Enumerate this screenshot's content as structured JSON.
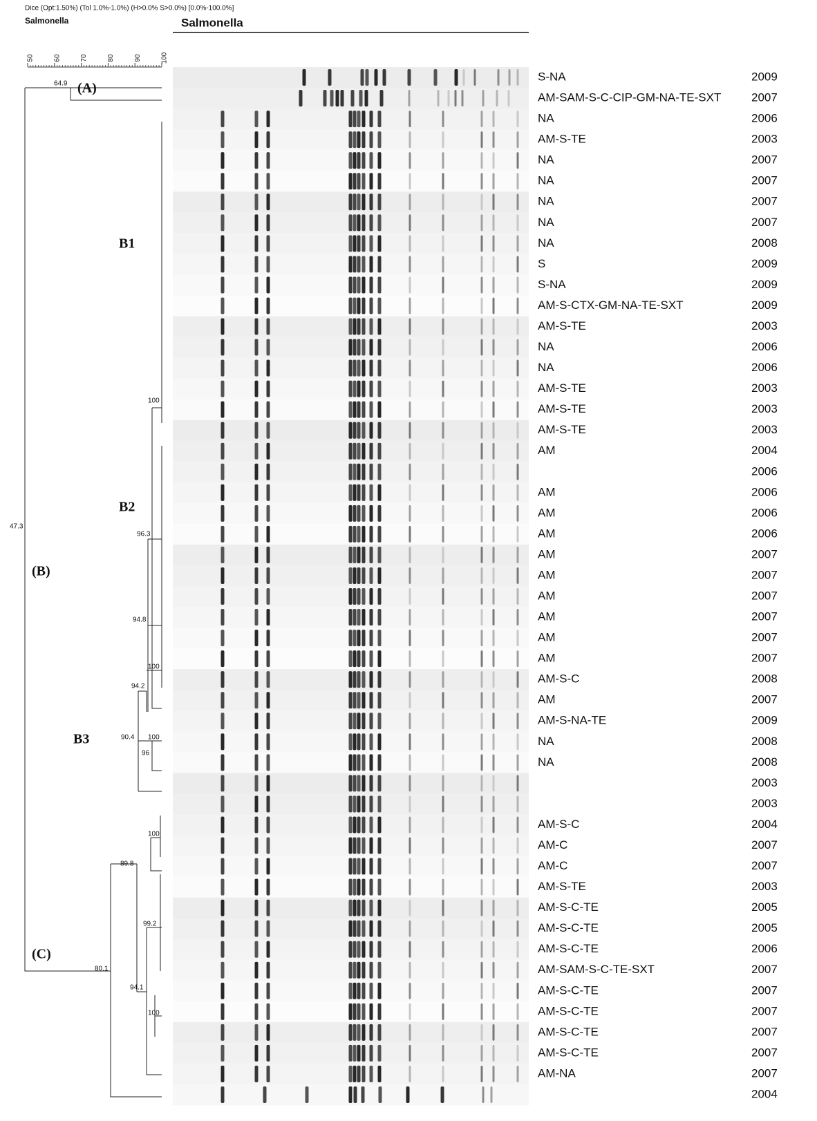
{
  "header": {
    "method": "Dice (Opt:1.50%) (Tol 1.0%-1.0%) (H>0.0% S>0.0%) [0.0%-100.0%]",
    "left_title": "Salmonella",
    "gel_title": "Salmonella"
  },
  "scale": {
    "ticks": [
      50,
      60,
      70,
      80,
      90,
      100
    ]
  },
  "clusters": [
    "(A)",
    "B1",
    "B2",
    "(B)",
    "B3",
    "(C)"
  ],
  "nodes": [
    64.9,
    47.3,
    100,
    96.3,
    94.8,
    100,
    94.2,
    90.4,
    100,
    96,
    100,
    89.8,
    99.2,
    80.1,
    94.1,
    100
  ],
  "rows": [
    {
      "profile": "S-NA",
      "year": 2009
    },
    {
      "profile": "AM-SAM-S-C-CIP-GM-NA-TE-SXT",
      "year": 2007
    },
    {
      "profile": "NA",
      "year": 2006
    },
    {
      "profile": "AM-S-TE",
      "year": 2003
    },
    {
      "profile": "NA",
      "year": 2007
    },
    {
      "profile": "NA",
      "year": 2007
    },
    {
      "profile": "NA",
      "year": 2007
    },
    {
      "profile": "NA",
      "year": 2007
    },
    {
      "profile": "NA",
      "year": 2008
    },
    {
      "profile": "S",
      "year": 2009
    },
    {
      "profile": "S-NA",
      "year": 2009
    },
    {
      "profile": "AM-S-CTX-GM-NA-TE-SXT",
      "year": 2009
    },
    {
      "profile": "AM-S-TE",
      "year": 2003
    },
    {
      "profile": "NA",
      "year": 2006
    },
    {
      "profile": "NA",
      "year": 2006
    },
    {
      "profile": "AM-S-TE",
      "year": 2003
    },
    {
      "profile": "AM-S-TE",
      "year": 2003
    },
    {
      "profile": "AM-S-TE",
      "year": 2003
    },
    {
      "profile": "AM",
      "year": 2004
    },
    {
      "profile": null,
      "year": 2006
    },
    {
      "profile": "AM",
      "year": 2006
    },
    {
      "profile": "AM",
      "year": 2006
    },
    {
      "profile": "AM",
      "year": 2006
    },
    {
      "profile": "AM",
      "year": 2007
    },
    {
      "profile": "AM",
      "year": 2007
    },
    {
      "profile": "AM",
      "year": 2007
    },
    {
      "profile": "AM",
      "year": 2007
    },
    {
      "profile": "AM",
      "year": 2007
    },
    {
      "profile": "AM",
      "year": 2007
    },
    {
      "profile": "AM-S-C",
      "year": 2008
    },
    {
      "profile": "AM",
      "year": 2007
    },
    {
      "profile": "AM-S-NA-TE",
      "year": 2009
    },
    {
      "profile": "NA",
      "year": 2008
    },
    {
      "profile": "NA",
      "year": 2008
    },
    {
      "profile": null,
      "year": 2003
    },
    {
      "profile": null,
      "year": 2003
    },
    {
      "profile": "AM-S-C",
      "year": 2004
    },
    {
      "profile": "AM-C",
      "year": 2007
    },
    {
      "profile": "AM-C",
      "year": 2007
    },
    {
      "profile": "AM-S-TE",
      "year": 2003
    },
    {
      "profile": "AM-S-C-TE",
      "year": 2005
    },
    {
      "profile": "AM-S-C-TE",
      "year": 2005
    },
    {
      "profile": "AM-S-C-TE",
      "year": 2006
    },
    {
      "profile": "AM-SAM-S-C-TE-SXT",
      "year": 2007
    },
    {
      "profile": "AM-S-C-TE",
      "year": 2007
    },
    {
      "profile": "AM-S-C-TE",
      "year": 2007
    },
    {
      "profile": "AM-S-C-TE",
      "year": 2007
    },
    {
      "profile": "AM-S-C-TE",
      "year": 2007
    },
    {
      "profile": "AM-NA",
      "year": 2007
    },
    {
      "profile": null,
      "year": 2004
    }
  ]
}
